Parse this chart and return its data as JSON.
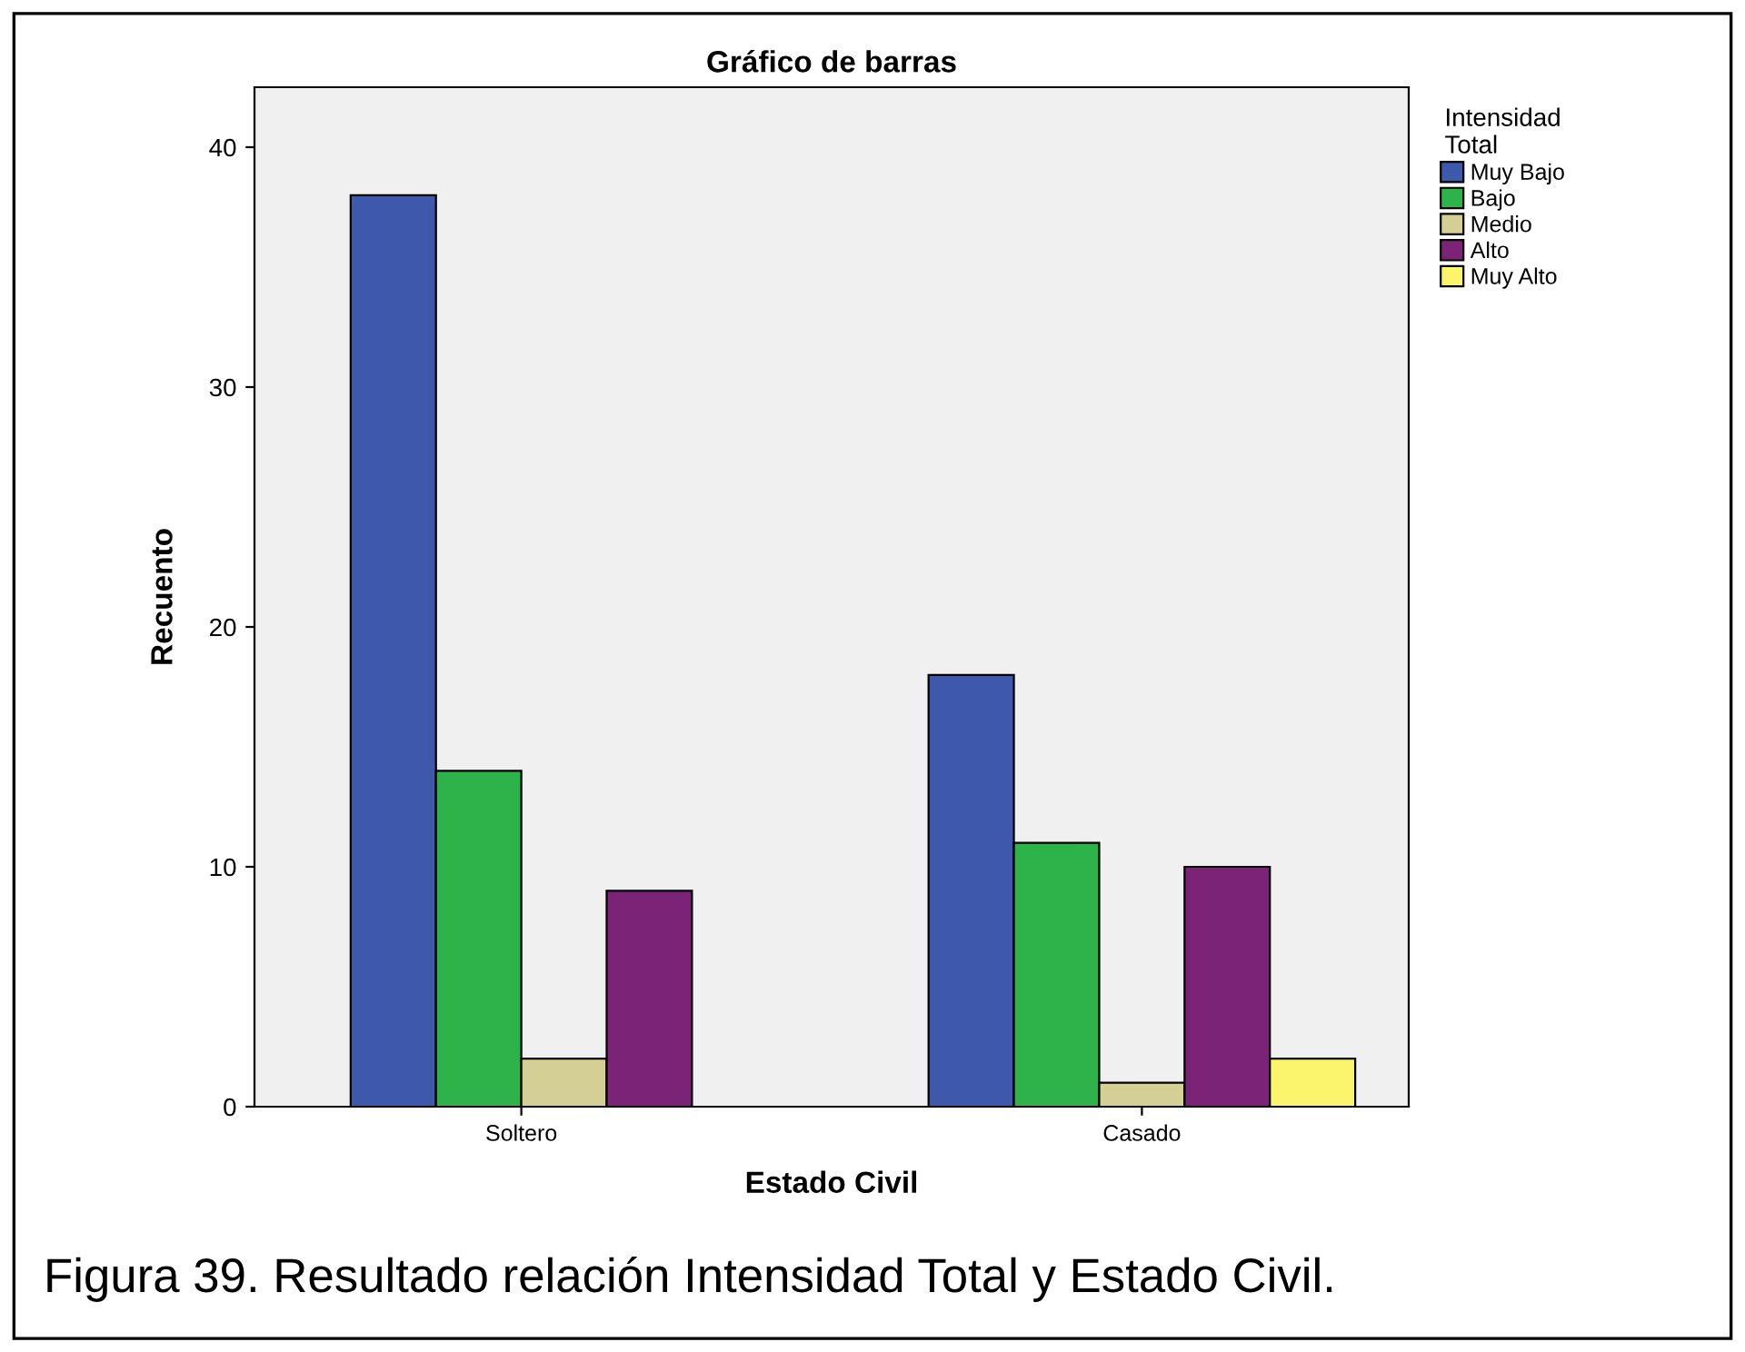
{
  "chart_data": {
    "type": "bar",
    "title": "Gráfico de barras",
    "xlabel": "Estado Civil",
    "ylabel": "Recuento",
    "legend_title": "Intensidad\nTotal",
    "categories": [
      "Soltero",
      "Casado"
    ],
    "series": [
      {
        "name": "Muy Bajo",
        "color": "#3e58ac",
        "values": [
          38,
          18
        ]
      },
      {
        "name": "Bajo",
        "color": "#2db34a",
        "values": [
          14,
          11
        ]
      },
      {
        "name": "Medio",
        "color": "#d4cf94",
        "values": [
          2,
          1
        ]
      },
      {
        "name": "Alto",
        "color": "#7b2477",
        "values": [
          9,
          10
        ]
      },
      {
        "name": "Muy Alto",
        "color": "#fbf46d",
        "values": [
          null,
          2
        ]
      }
    ],
    "ylim": [
      0,
      42.5
    ],
    "yticks": [
      0,
      10,
      20,
      30,
      40
    ],
    "grid": false,
    "legend": "top right",
    "annotations": [
      "Figura 39. Resultado relación Intensidad Total y Estado Civil."
    ]
  }
}
